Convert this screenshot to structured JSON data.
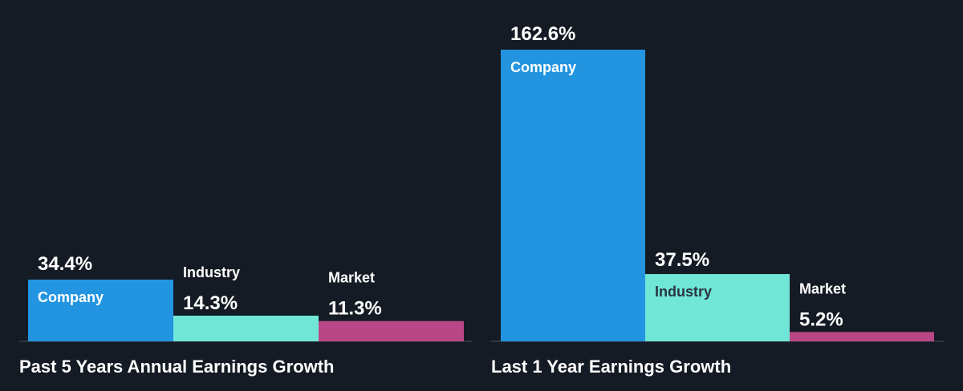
{
  "colors": {
    "background": "#151b24",
    "company": "#2394e0",
    "industry": "#6fe6d6",
    "market": "#b94785",
    "baseline": "#4a5260",
    "text_light": "#ffffff",
    "text_dark": "#2a3340"
  },
  "chart_data": [
    {
      "type": "bar",
      "title": "Past 5 Years Annual Earnings Growth",
      "categories": [
        "Company",
        "Industry",
        "Market"
      ],
      "values": [
        34.4,
        14.3,
        11.3
      ],
      "value_labels": [
        "34.4%",
        "14.3%",
        "11.3%"
      ],
      "unit": "%",
      "xlabel": "",
      "ylabel": "",
      "grid": false,
      "legend": "none"
    },
    {
      "type": "bar",
      "title": "Last 1 Year Earnings Growth",
      "categories": [
        "Company",
        "Industry",
        "Market"
      ],
      "values": [
        162.6,
        37.5,
        5.2
      ],
      "value_labels": [
        "162.6%",
        "37.5%",
        "5.2%"
      ],
      "unit": "%",
      "xlabel": "",
      "ylabel": "",
      "grid": false,
      "legend": "none"
    }
  ]
}
